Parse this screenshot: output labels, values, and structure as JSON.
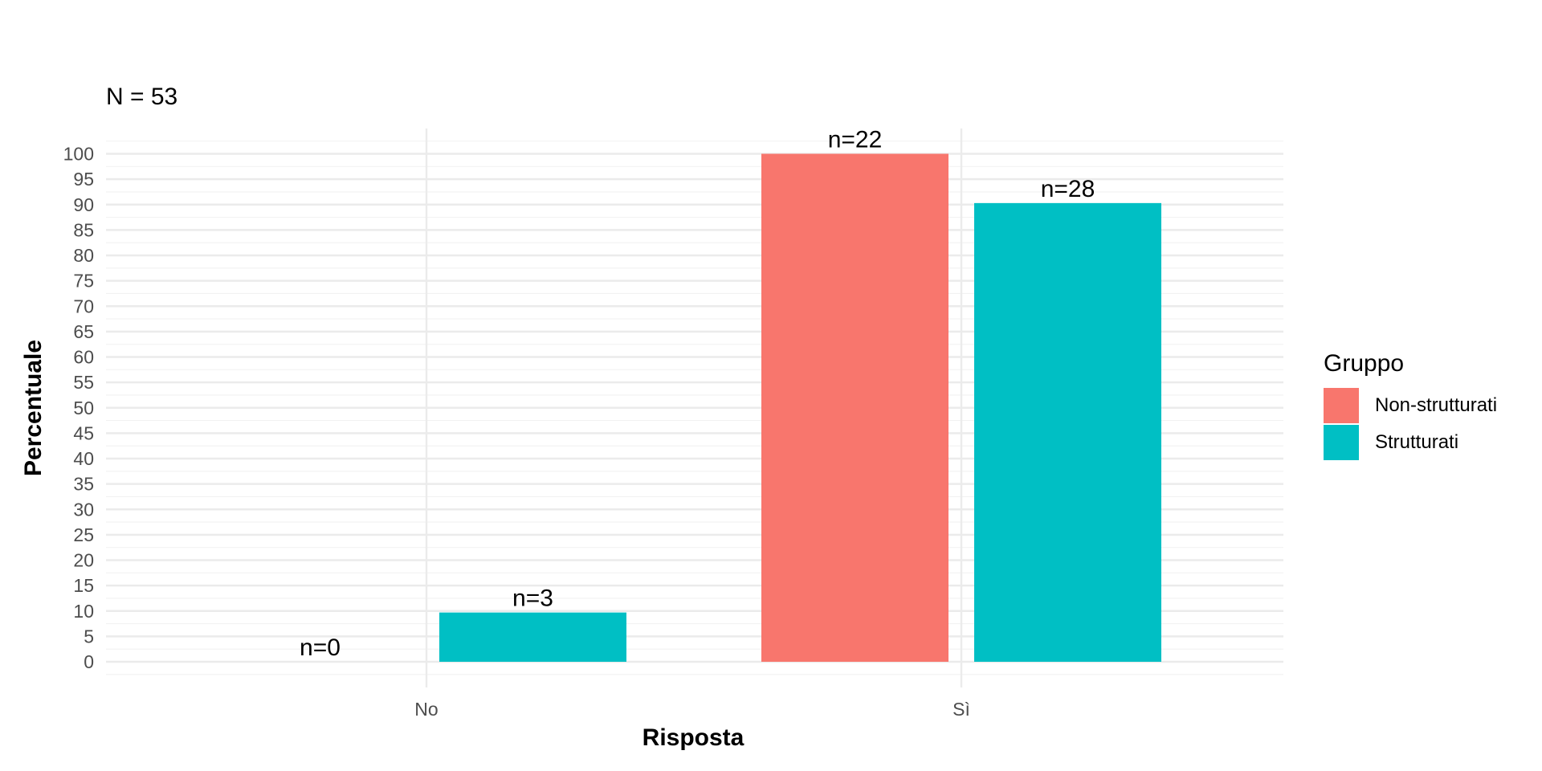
{
  "chart_data": {
    "type": "bar",
    "subtitle": "N = 53",
    "xlabel": "Risposta",
    "ylabel": "Percentuale",
    "categories": [
      "No",
      "Sì"
    ],
    "ylim": [
      -5,
      105
    ],
    "yticks": [
      0,
      5,
      10,
      15,
      20,
      25,
      30,
      35,
      40,
      45,
      50,
      55,
      60,
      65,
      70,
      75,
      80,
      85,
      90,
      95,
      100
    ],
    "grid": true,
    "legend_position": "right",
    "legend_title": "Gruppo",
    "series": [
      {
        "name": "Non-strutturati",
        "color": "#F8766D",
        "values": [
          0,
          100
        ],
        "labels": [
          "n=0",
          "n=22"
        ]
      },
      {
        "name": "Strutturati",
        "color": "#00BFC4",
        "values": [
          9.7,
          90.3
        ],
        "labels": [
          "n=3",
          "n=28"
        ]
      }
    ]
  }
}
